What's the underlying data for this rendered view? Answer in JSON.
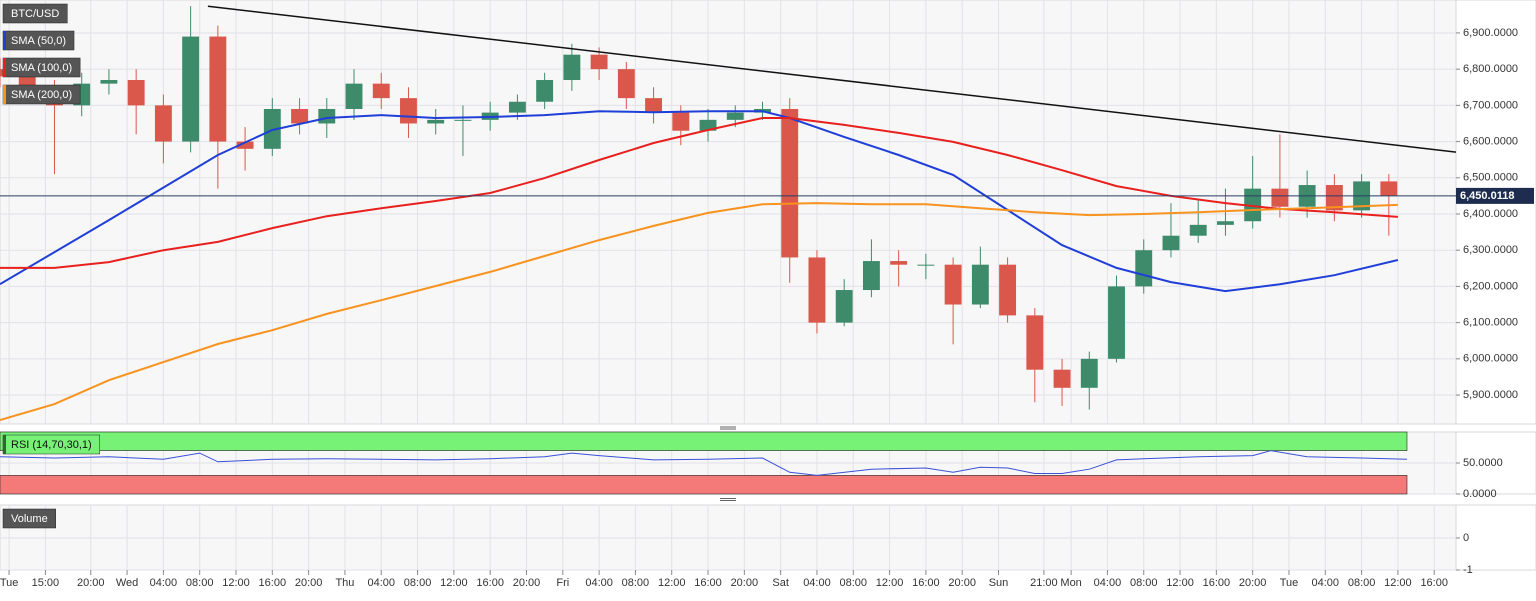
{
  "chart_data": [
    {
      "type": "candlestick",
      "title": "BTC/USD",
      "candles": {
        "x": [
          -14,
          -11,
          -8,
          -5,
          -2,
          1,
          4,
          7,
          10,
          13,
          16,
          19,
          22,
          25,
          28,
          31,
          34,
          37,
          40,
          43,
          46,
          49,
          52,
          55,
          58,
          61,
          64,
          67,
          70,
          73,
          76,
          79,
          82,
          85,
          88,
          91,
          94,
          97,
          100,
          103,
          106,
          109,
          112,
          115,
          118,
          121,
          124,
          127,
          130,
          133,
          136,
          139
        ],
        "open": [
          6800,
          6780,
          6740,
          6700,
          6760,
          6770,
          6700,
          6600,
          6890,
          6600,
          6580,
          6690,
          6650,
          6690,
          6760,
          6720,
          6650,
          6660,
          6660,
          6680,
          6710,
          6770,
          6840,
          6800,
          6720,
          6680,
          6630,
          6660,
          6680,
          6690,
          6280,
          6100,
          6190,
          6270,
          6260,
          6260,
          6150,
          6260,
          6120,
          5970,
          5920,
          6000,
          6200,
          6300,
          6340,
          6370,
          6380,
          6470,
          6420,
          6480,
          6410,
          6490
        ],
        "high": [
          6830,
          6810,
          6770,
          6790,
          6800,
          6800,
          6730,
          6974,
          6920,
          6640,
          6720,
          6720,
          6720,
          6800,
          6790,
          6750,
          6690,
          6700,
          6710,
          6730,
          6790,
          6870,
          6860,
          6820,
          6750,
          6700,
          6690,
          6700,
          6710,
          6720,
          6300,
          6220,
          6330,
          6300,
          6290,
          6280,
          6310,
          6280,
          6140,
          6000,
          6020,
          6230,
          6330,
          6430,
          6440,
          6470,
          6560,
          6620,
          6520,
          6510,
          6510,
          6510
        ],
        "low": [
          6750,
          6710,
          6510,
          6670,
          6730,
          6620,
          6540,
          6570,
          6470,
          6520,
          6560,
          6620,
          6610,
          6660,
          6690,
          6610,
          6620,
          6560,
          6630,
          6660,
          6690,
          6740,
          6770,
          6690,
          6650,
          6590,
          6600,
          6640,
          6660,
          6210,
          6070,
          6090,
          6170,
          6200,
          6220,
          6040,
          6140,
          6100,
          5880,
          5870,
          5860,
          5990,
          6180,
          6280,
          6320,
          6340,
          6360,
          6390,
          6390,
          6380,
          6390,
          6340
        ],
        "close": [
          6780,
          6740,
          6700,
          6760,
          6770,
          6700,
          6600,
          6890,
          6600,
          6580,
          6690,
          6650,
          6690,
          6760,
          6720,
          6650,
          6660,
          6660,
          6680,
          6710,
          6770,
          6840,
          6800,
          6720,
          6680,
          6630,
          6660,
          6680,
          6690,
          6280,
          6100,
          6190,
          6270,
          6260,
          6260,
          6150,
          6260,
          6120,
          5970,
          5920,
          6000,
          6200,
          6300,
          6340,
          6370,
          6380,
          6470,
          6420,
          6480,
          6410,
          6490,
          6450
        ]
      },
      "up_color": "#3d8b6b",
      "down_color": "#d9574b",
      "series": [
        {
          "name": "SMA (50,0)",
          "color": "#1f3fd8",
          "x": [
            -14,
            -2,
            10,
            16,
            22,
            28,
            34,
            40,
            46,
            52,
            58,
            64,
            70,
            73,
            79,
            85,
            91,
            97,
            103,
            109,
            115,
            121,
            127,
            133,
            140
          ],
          "values": [
            6206,
            6383,
            6563,
            6632,
            6665,
            6673,
            6665,
            6668,
            6673,
            6684,
            6681,
            6684,
            6684,
            6665,
            6613,
            6563,
            6508,
            6411,
            6314,
            6251,
            6212,
            6187,
            6206,
            6231,
            6273
          ]
        },
        {
          "name": "SMA (100,0)",
          "color": "#e8201e",
          "x": [
            -14,
            -8,
            -2,
            4,
            10,
            16,
            22,
            28,
            34,
            40,
            46,
            52,
            58,
            64,
            70,
            73,
            79,
            85,
            91,
            97,
            103,
            109,
            115,
            121,
            127,
            133,
            140
          ],
          "values": [
            6251,
            6251,
            6267,
            6300,
            6323,
            6361,
            6394,
            6416,
            6436,
            6458,
            6499,
            6549,
            6596,
            6632,
            6665,
            6665,
            6646,
            6624,
            6599,
            6563,
            6521,
            6477,
            6450,
            6430,
            6414,
            6405,
            6392
          ]
        },
        {
          "name": "SMA (200,0)",
          "color": "#f7931e",
          "x": [
            -14,
            -8,
            -2,
            4,
            10,
            16,
            22,
            28,
            34,
            40,
            46,
            52,
            58,
            64,
            70,
            76,
            82,
            88,
            94,
            100,
            106,
            112,
            118,
            124,
            130,
            140
          ],
          "values": [
            5831,
            5875,
            5941,
            5991,
            6041,
            6079,
            6124,
            6162,
            6201,
            6240,
            6284,
            6328,
            6367,
            6403,
            6427,
            6430,
            6427,
            6427,
            6416,
            6405,
            6397,
            6400,
            6405,
            6411,
            6416,
            6425
          ]
        }
      ],
      "trendline": {
        "color": "#111111",
        "x": [
          8.9,
          146.4
        ],
        "values": [
          6974,
          6571
        ]
      },
      "last_price": {
        "value": 6450.0118,
        "label": "6,450.0118"
      },
      "xlim": [
        -14,
        146.4
      ],
      "ylim": [
        5820,
        6991
      ],
      "yticks": [
        {
          "value": 5900,
          "label": "5,900.0000"
        },
        {
          "value": 6000,
          "label": "6,000.0000"
        },
        {
          "value": 6100,
          "label": "6,100.0000"
        },
        {
          "value": 6200,
          "label": "6,200.0000"
        },
        {
          "value": 6300,
          "label": "6,300.0000"
        },
        {
          "value": 6400,
          "label": "6,400.0000"
        },
        {
          "value": 6500,
          "label": "6,500.0000"
        },
        {
          "value": 6600,
          "label": "6,600.0000"
        },
        {
          "value": 6700,
          "label": "6,700.0000"
        },
        {
          "value": 6800,
          "label": "6,800.0000"
        },
        {
          "value": 6900,
          "label": "6,900.0000"
        }
      ],
      "xticks": [
        {
          "value": -13,
          "label": "Tue"
        },
        {
          "value": -9,
          "label": "15:00"
        },
        {
          "value": -4,
          "label": "20:00"
        },
        {
          "value": 0,
          "label": "Wed"
        },
        {
          "value": 4,
          "label": "04:00"
        },
        {
          "value": 8,
          "label": "08:00"
        },
        {
          "value": 12,
          "label": "12:00"
        },
        {
          "value": 16,
          "label": "16:00"
        },
        {
          "value": 20,
          "label": "20:00"
        },
        {
          "value": 24,
          "label": "Thu"
        },
        {
          "value": 28,
          "label": "04:00"
        },
        {
          "value": 32,
          "label": "08:00"
        },
        {
          "value": 36,
          "label": "12:00"
        },
        {
          "value": 40,
          "label": "16:00"
        },
        {
          "value": 44,
          "label": "20:00"
        },
        {
          "value": 48,
          "label": "Fri"
        },
        {
          "value": 52,
          "label": "04:00"
        },
        {
          "value": 56,
          "label": "08:00"
        },
        {
          "value": 60,
          "label": "12:00"
        },
        {
          "value": 64,
          "label": "16:00"
        },
        {
          "value": 68,
          "label": "20:00"
        },
        {
          "value": 72,
          "label": "Sat"
        },
        {
          "value": 76,
          "label": "04:00"
        },
        {
          "value": 80,
          "label": "08:00"
        },
        {
          "value": 84,
          "label": "12:00"
        },
        {
          "value": 88,
          "label": "16:00"
        },
        {
          "value": 92,
          "label": "20:00"
        },
        {
          "value": 96,
          "label": "Sun"
        },
        {
          "value": 101,
          "label": "21:00"
        },
        {
          "value": 104,
          "label": "Mon"
        },
        {
          "value": 108,
          "label": "04:00"
        },
        {
          "value": 112,
          "label": "08:00"
        },
        {
          "value": 116,
          "label": "12:00"
        },
        {
          "value": 120,
          "label": "16:00"
        },
        {
          "value": 124,
          "label": "20:00"
        },
        {
          "value": 128,
          "label": "Tue"
        },
        {
          "value": 132,
          "label": "04:00"
        },
        {
          "value": 136,
          "label": "08:00"
        },
        {
          "value": 140,
          "label": "12:00"
        },
        {
          "value": 144,
          "label": "16:00"
        }
      ],
      "grid": true
    },
    {
      "type": "line",
      "title": "RSI (14,70,30,1)",
      "color": "#3a50d8",
      "overbought": 70,
      "oversold": 30,
      "overbought_color": "#77f277",
      "oversold_color": "#f47a7a",
      "x": [
        -14,
        -8,
        -2,
        4,
        8,
        10,
        16,
        22,
        28,
        34,
        40,
        46,
        49,
        52,
        58,
        64,
        70,
        73,
        76,
        82,
        88,
        91,
        94,
        97,
        100,
        103,
        106,
        109,
        112,
        118,
        124,
        126,
        130,
        136,
        141
      ],
      "values": [
        60,
        58,
        60,
        56,
        66,
        52,
        56,
        57,
        56,
        55,
        57,
        60,
        66,
        62,
        55,
        56,
        58,
        35,
        30,
        40,
        42,
        35,
        43,
        42,
        33,
        33,
        40,
        55,
        57,
        60,
        62,
        70,
        60,
        58,
        56
      ],
      "ylim": [
        0,
        100
      ],
      "yticks": [
        {
          "value": 0,
          "label": "0.0000"
        },
        {
          "value": 50,
          "label": "50.0000"
        }
      ],
      "grid": true
    },
    {
      "type": "bar",
      "title": "Volume",
      "ylim": [
        -1,
        1.03
      ],
      "yticks": [
        0,
        -1
      ],
      "grid": true
    }
  ]
}
